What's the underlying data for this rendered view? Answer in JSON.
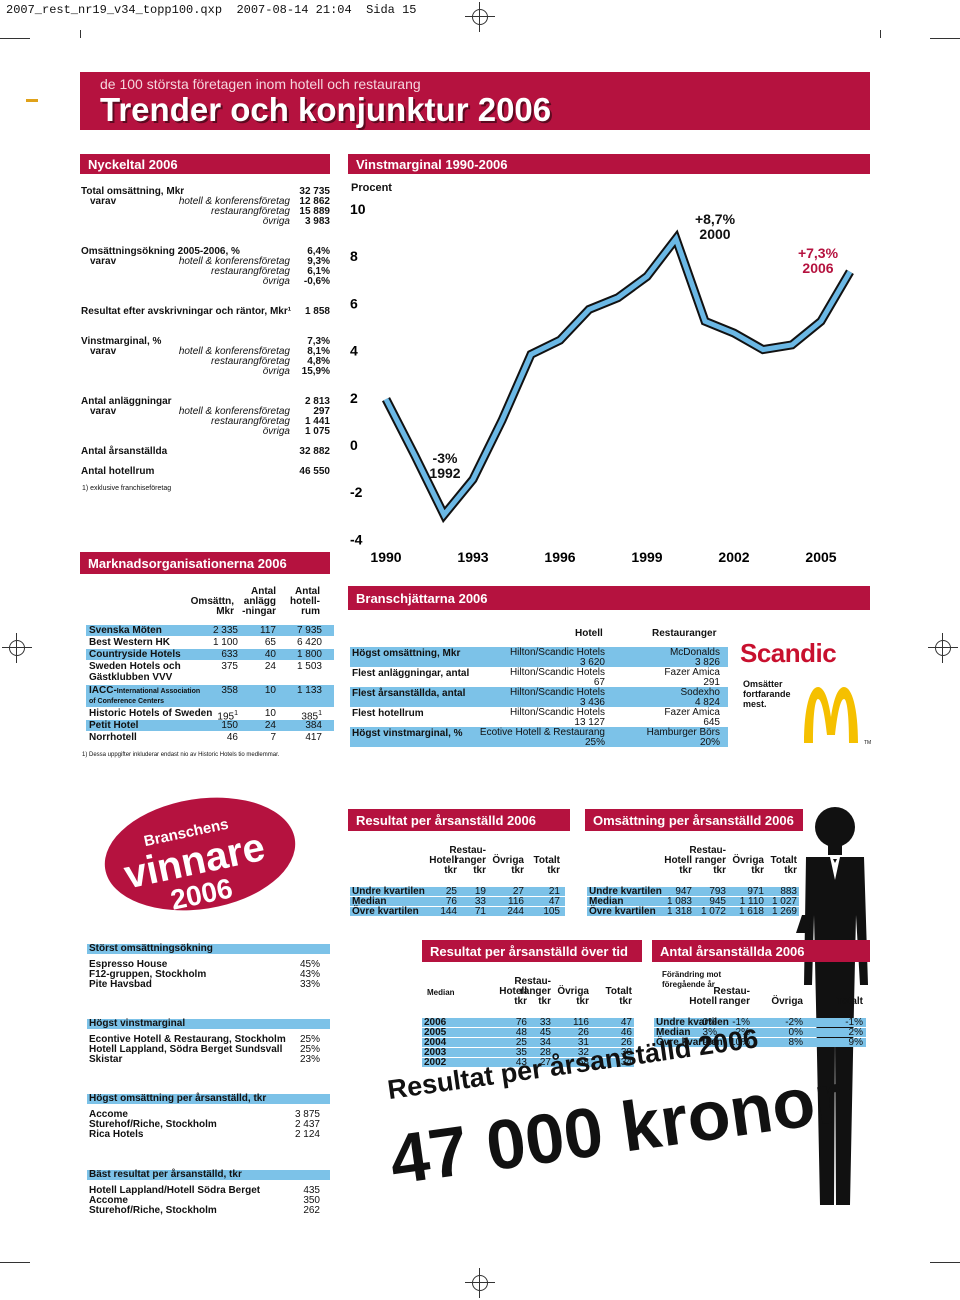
{
  "slug": {
    "file": "2007_rest_nr19_v34_topp100.qxp",
    "datetime": "2007-08-14  21:04",
    "page": "Sida 15"
  },
  "header": {
    "kicker": "de 100 största företagen inom hotell och restaurang",
    "title": "Trender och konjunktur 2006"
  },
  "nyckeltal": {
    "title": "Nyckeltal 2006",
    "rows": [
      {
        "label": "Total omsättning, Mkr",
        "value": "32 735",
        "type": "main"
      },
      {
        "label": "varav",
        "sub": "hotell & konferensföretag",
        "value": "12 862",
        "type": "sub"
      },
      {
        "label": "",
        "sub": "restaurangföretag",
        "value": "15 889",
        "type": "sub"
      },
      {
        "label": "",
        "sub": "övriga",
        "value": "3 983",
        "type": "sub"
      },
      {
        "label": "Omsättningsökning 2005-2006, %",
        "value": "6,4%",
        "type": "main"
      },
      {
        "label": "varav",
        "sub": "hotell & konferensföretag",
        "value": "9,3%",
        "type": "sub"
      },
      {
        "label": "",
        "sub": "restaurangföretag",
        "value": "6,1%",
        "type": "sub"
      },
      {
        "label": "",
        "sub": "övriga",
        "value": "-0,6%",
        "type": "sub"
      },
      {
        "label": "Resultat efter avskrivningar och räntor, Mkr¹",
        "value": "1 858",
        "type": "main"
      },
      {
        "label": "Vinstmarginal, %",
        "value": "7,3%",
        "type": "main"
      },
      {
        "label": "varav",
        "sub": "hotell & konferensföretag",
        "value": "8,1%",
        "type": "sub"
      },
      {
        "label": "",
        "sub": "restaurangföretag",
        "value": "4,8%",
        "type": "sub"
      },
      {
        "label": "",
        "sub": "övriga",
        "value": "15,9%",
        "type": "sub"
      },
      {
        "label": "Antal anläggningar",
        "value": "2 813",
        "type": "main"
      },
      {
        "label": "varav",
        "sub": "hotell & konferensföretag",
        "value": "297",
        "type": "sub"
      },
      {
        "label": "",
        "sub": "restaurangföretag",
        "value": "1 441",
        "type": "sub"
      },
      {
        "label": "",
        "sub": "övriga",
        "value": "1 075",
        "type": "sub"
      },
      {
        "label": "Antal årsanställda",
        "value": "32 882",
        "type": "main"
      },
      {
        "label": "Antal hotellrum",
        "value": "46 550",
        "type": "main"
      }
    ],
    "footnote": "1) exklusive franchiseföretag"
  },
  "chart_data": {
    "type": "line",
    "title": "Vinstmarginal 1990-2006",
    "ylabel": "Procent",
    "ylim": [
      -4,
      10
    ],
    "yticks": [
      "10",
      "8",
      "6",
      "4",
      "2",
      "0",
      "-2",
      "-4"
    ],
    "xticks": [
      "1990",
      "1993",
      "1996",
      "1999",
      "2002",
      "2005"
    ],
    "x": [
      1990,
      1991,
      1992,
      1993,
      1994,
      1995,
      1996,
      1997,
      1998,
      1999,
      2000,
      2001,
      2002,
      2003,
      2004,
      2005,
      2006
    ],
    "values": [
      1.9,
      -0.5,
      -3.0,
      -1.5,
      1.0,
      3.8,
      4.4,
      5.7,
      6.2,
      7.1,
      8.7,
      5.2,
      4.7,
      4.0,
      4.2,
      5.2,
      7.3
    ],
    "series": [
      {
        "values": [
          1.9,
          -0.5,
          -3.0,
          -1.5,
          1.0,
          3.8,
          4.4,
          5.7,
          6.2,
          7.1,
          8.7,
          5.2,
          4.7,
          4.0,
          4.2,
          5.2,
          7.3
        ]
      }
    ],
    "annotations": [
      {
        "value": "+8,7%",
        "year": "2000"
      },
      {
        "value": "+7,3%",
        "year": "2006"
      },
      {
        "value": "-3%",
        "year": "1992"
      }
    ],
    "line_color": "#6bb8e5"
  },
  "marknad": {
    "title": "Marknadsorganisationerna 2006",
    "col1": [
      "Omsättn,",
      "Mkr"
    ],
    "col2": [
      "Antal",
      "anlägg",
      "-ningar"
    ],
    "col3": [
      "Antal",
      "hotell-",
      "rum"
    ],
    "rows": [
      {
        "name": "Svenska Möten",
        "a": "2 335",
        "b": "117",
        "c": "7 935",
        "hl": true
      },
      {
        "name": "Best Western HK",
        "a": "1 100",
        "b": "65",
        "c": "6 420",
        "hl": false
      },
      {
        "name": "Countryside Hotels",
        "a": "633",
        "b": "40",
        "c": "1 800",
        "hl": true
      },
      {
        "name": "Sweden Hotels och",
        "name2": "Gästklubben VVV",
        "a": "375",
        "b": "24",
        "c": "1 503",
        "hl": false
      },
      {
        "name": "IACC-",
        "name_small": "International Association",
        "name2": "of Conference Centers",
        "a": "358",
        "b": "10",
        "c": "1 133",
        "hl": true
      },
      {
        "name": "Historic Hotels of Sweden",
        "a": "195",
        "a_sup": "1",
        "b": "10",
        "c": "385",
        "c_sup": "1",
        "hl": false
      },
      {
        "name": "Petit Hotel",
        "a": "150",
        "b": "24",
        "c": "384",
        "hl": true
      },
      {
        "name": "Norrhotell",
        "a": "46",
        "b": "7",
        "c": "417",
        "hl": false
      }
    ],
    "footnote": "1) Dessa uppgifter inkluderar endast nio av Historic Hotels tio medlemmar."
  },
  "jattarna": {
    "title": "Branschjättarna 2006",
    "col_hotell": "Hotell",
    "col_rest": "Restauranger",
    "rows": [
      {
        "label": "Högst omsättning, Mkr",
        "h": "Hilton/Scandic Hotels",
        "hv": "3 620",
        "r": "McDonalds",
        "rv": "3 826",
        "hl": true
      },
      {
        "label": "Flest anläggningar, antal",
        "h": "Hilton/Scandic Hotels",
        "hv": "67",
        "r": "Fazer Amica",
        "rv": "291",
        "hl": false
      },
      {
        "label": "Flest årsanställda, antal",
        "h": "Hilton/Scandic Hotels",
        "hv": "3 436",
        "r": "Sodexho",
        "rv": "4 824",
        "hl": true
      },
      {
        "label": "Flest hotellrum",
        "h": "Hilton/Scandic Hotels",
        "hv": "13 127",
        "r": "Fazer Amica",
        "rv": "645",
        "hl": false
      },
      {
        "label": "Högst vinstmarginal, %",
        "h": "Ecotive Hotell & Restaurang",
        "hv": "25%",
        "r": "Hamburger Börs",
        "rv": "20%",
        "hl": true
      }
    ],
    "scandic": "Scandic",
    "omsatter": [
      "Omsätter",
      "fortfarande",
      "mest."
    ],
    "tm": "TM"
  },
  "vinnare": {
    "line1": "Branschens",
    "line2": "vinnare",
    "line3": "2006"
  },
  "resultat_anst": {
    "title": "Resultat per årsanställd 2006",
    "cols": [
      [
        "Hotell",
        "tkr"
      ],
      [
        "Restau-",
        "ranger",
        "tkr"
      ],
      [
        "Övriga",
        "tkr"
      ],
      [
        "Totalt",
        "tkr"
      ]
    ],
    "rows": [
      {
        "label": "Undre kvartilen",
        "v": [
          "25",
          "19",
          "27",
          "21"
        ]
      },
      {
        "label": "Median",
        "v": [
          "76",
          "33",
          "116",
          "47"
        ]
      },
      {
        "label": "Övre kvartilen",
        "v": [
          "144",
          "71",
          "244",
          "105"
        ]
      }
    ]
  },
  "oms_anst": {
    "title": "Omsättning per årsanställd 2006",
    "cols": [
      [
        "Hotell",
        "tkr"
      ],
      [
        "Restau-",
        "ranger",
        "tkr"
      ],
      [
        "Övriga",
        "tkr"
      ],
      [
        "Totalt",
        "tkr"
      ]
    ],
    "rows": [
      {
        "label": "Undre kvartilen",
        "v": [
          "947",
          "793",
          "971",
          "883"
        ]
      },
      {
        "label": "Median",
        "v": [
          "1 083",
          "945",
          "1 110",
          "1 027"
        ]
      },
      {
        "label": "Övre kvartilen",
        "v": [
          "1 318",
          "1 072",
          "1 618",
          "1 269"
        ]
      }
    ]
  },
  "winners_lists": [
    {
      "title": "Störst omsättningsökning",
      "rows": [
        [
          "Espresso House",
          "45%"
        ],
        [
          "F12-gruppen, Stockholm",
          "43%"
        ],
        [
          "Pite Havsbad",
          "33%"
        ]
      ]
    },
    {
      "title": "Högst vinstmarginal",
      "rows": [
        [
          "Econtive Hotell & Restaurang, Stockholm",
          "25%"
        ],
        [
          "Hotell Lappland, Södra Berget Sundsvall",
          "25%"
        ],
        [
          "Skistar",
          "23%"
        ]
      ]
    },
    {
      "title": "Högst omsättning per årsanställd, tkr",
      "rows": [
        [
          "Accome",
          "3 875"
        ],
        [
          "Sturehof/Riche, Stockholm",
          "2 437"
        ],
        [
          "Rica Hotels",
          "2 124"
        ]
      ]
    },
    {
      "title": "Bäst resultat per årsanställd, tkr",
      "rows": [
        [
          "Hotell Lappland/Hotell Södra Berget",
          "435"
        ],
        [
          "Accome",
          "350"
        ],
        [
          "Sturehof/Riche, Stockholm",
          "262"
        ]
      ]
    }
  ],
  "resultat_tid": {
    "title": "Resultat per årsanställd över tid",
    "median": "Median",
    "cols": [
      [
        "Hotell",
        "tkr"
      ],
      [
        "Restau-",
        "ranger",
        "tkr"
      ],
      [
        "Övriga",
        "tkr"
      ],
      [
        "Totalt",
        "tkr"
      ]
    ],
    "rows": [
      {
        "label": "2006",
        "v": [
          "76",
          "33",
          "116",
          "47"
        ]
      },
      {
        "label": "2005",
        "v": [
          "48",
          "45",
          "26",
          "46"
        ]
      },
      {
        "label": "2004",
        "v": [
          "25",
          "34",
          "31",
          "26"
        ]
      },
      {
        "label": "2003",
        "v": [
          "35",
          "28",
          "32",
          "30"
        ]
      },
      {
        "label": "2002",
        "v": [
          "43",
          "27",
          "58",
          "34"
        ]
      }
    ]
  },
  "antal_anst": {
    "title": "Antal årsanställda 2006",
    "note": [
      "Förändring mot",
      "föregående år"
    ],
    "cols": [
      [
        "Hotell"
      ],
      [
        "Restau-",
        "ranger"
      ],
      [
        "Övriga"
      ],
      [
        "Totalt"
      ]
    ],
    "rows": [
      {
        "label": "Undre kvartilen",
        "v": [
          "0%",
          "-1%",
          "-2%",
          "-1%"
        ]
      },
      {
        "label": "Median",
        "v": [
          "3%",
          "2%",
          "0%",
          "2%"
        ]
      },
      {
        "label": "Övre kvartilen",
        "v": [
          "9%",
          "10%",
          "8%",
          "9%"
        ]
      }
    ]
  },
  "big": {
    "line1": "Resultat per årsanställd 2006",
    "line2": "47 000 kronor"
  }
}
